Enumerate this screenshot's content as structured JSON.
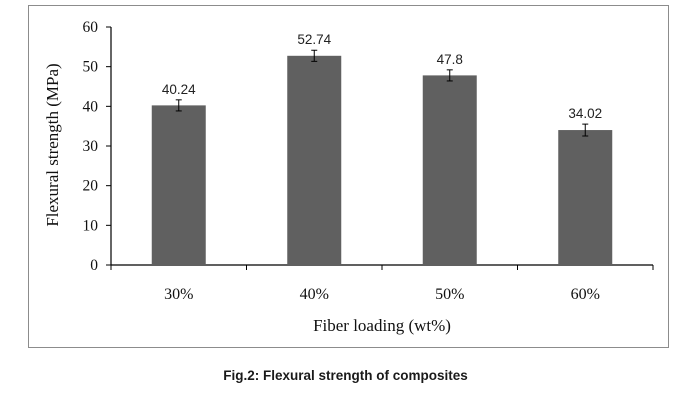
{
  "chart_data": {
    "type": "bar",
    "categories": [
      "30%",
      "40%",
      "50%",
      "60%"
    ],
    "values": [
      40.24,
      52.74,
      47.8,
      34.02
    ],
    "data_labels": [
      "40.24",
      "52.74",
      "47.8",
      "34.02"
    ],
    "error": [
      1.4,
      1.4,
      1.4,
      1.5
    ],
    "xlabel": "Fiber loading (wt%)",
    "ylabel": "Flexural strength (MPa)",
    "ylim": [
      0,
      60
    ],
    "yticks": [
      "0",
      "10",
      "20",
      "30",
      "40",
      "50",
      "60"
    ],
    "grid": false,
    "legend": "none",
    "bar_color": "#606060"
  },
  "caption": "Fig.2: Flexural strength of composites"
}
